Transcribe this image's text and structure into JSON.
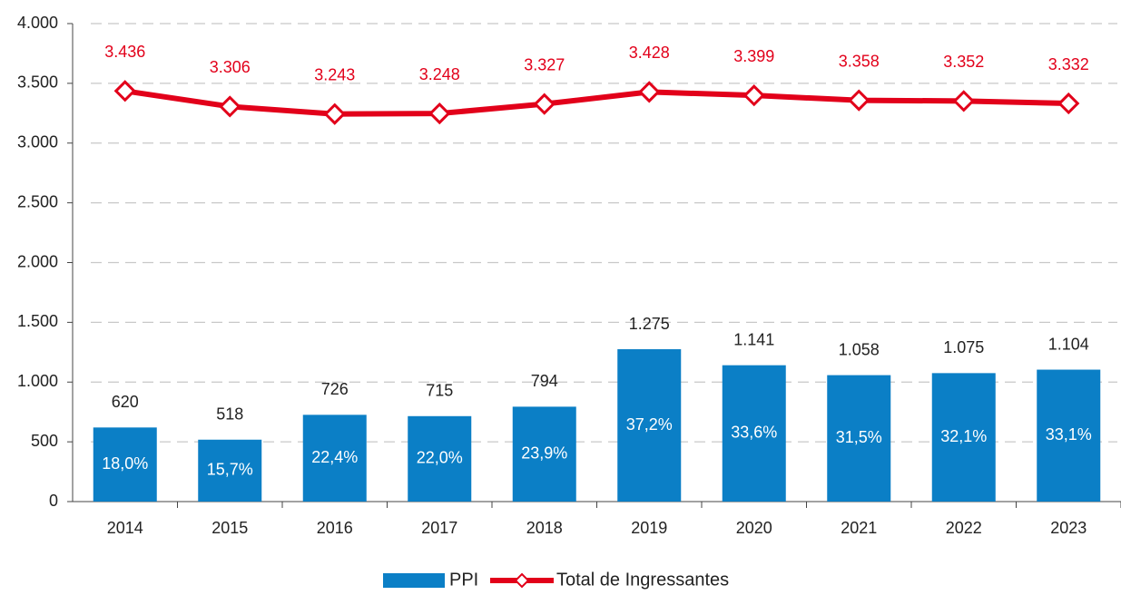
{
  "chart_data": {
    "type": "combo",
    "categories": [
      "2014",
      "2015",
      "2016",
      "2017",
      "2018",
      "2019",
      "2020",
      "2021",
      "2022",
      "2023"
    ],
    "series": [
      {
        "name": "PPI",
        "type": "bar",
        "color": "#0b7fc6",
        "values": [
          620,
          518,
          726,
          715,
          794,
          1275,
          1141,
          1058,
          1075,
          1104
        ],
        "value_labels": [
          "620",
          "518",
          "726",
          "715",
          "794",
          "1.275",
          "1.141",
          "1.058",
          "1.075",
          "1.104"
        ],
        "shares": [
          18.0,
          15.7,
          22.4,
          22.0,
          23.9,
          37.2,
          33.6,
          31.5,
          32.1,
          33.1
        ],
        "share_labels": [
          "18,0%",
          "15,7%",
          "22,4%",
          "22,0%",
          "23,9%",
          "37,2%",
          "33,6%",
          "31,5%",
          "32,1%",
          "33,1%"
        ]
      },
      {
        "name": "Total de Ingressantes",
        "type": "line",
        "color": "#e2001a",
        "values": [
          3436,
          3306,
          3243,
          3248,
          3327,
          3428,
          3399,
          3358,
          3352,
          3332
        ],
        "value_labels": [
          "3.436",
          "3.306",
          "3.243",
          "3.248",
          "3.327",
          "3.428",
          "3.399",
          "3.358",
          "3.352",
          "3.332"
        ]
      }
    ],
    "ylim": [
      0,
      4000
    ],
    "yticks": [
      0,
      500,
      {
        "value": 1000,
        "label": "1.000"
      },
      {
        "value": 1500,
        "label": "1.500"
      },
      {
        "value": 2000,
        "label": "2.000"
      },
      {
        "value": 2500,
        "label": "2.500"
      },
      {
        "value": 3000,
        "label": "3.000"
      },
      {
        "value": 3500,
        "label": "3.500"
      },
      {
        "value": 4000,
        "label": "4.000"
      }
    ],
    "grid": true,
    "legend": "bottom"
  }
}
